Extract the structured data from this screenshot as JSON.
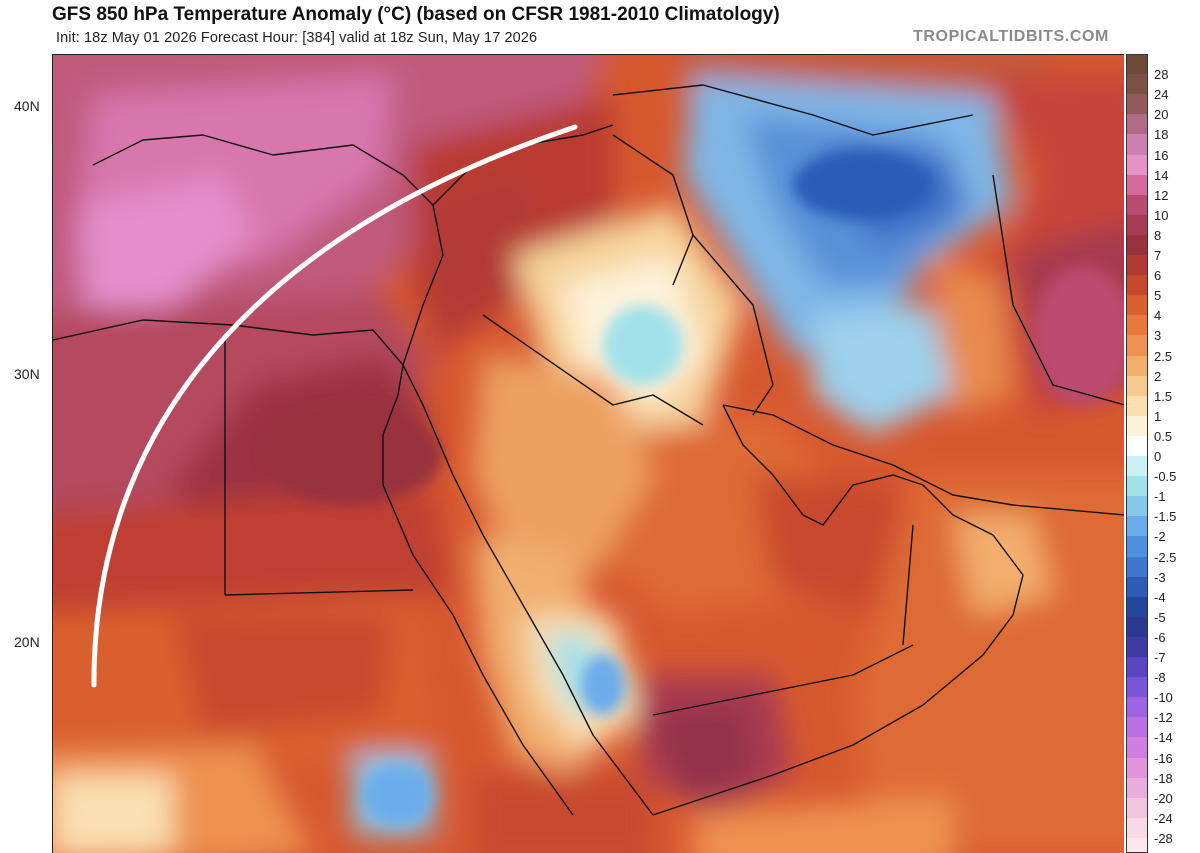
{
  "header": {
    "title": "GFS 850 hPa Temperature Anomaly (°C) (based on CFSR 1981-2010 Climatology)",
    "subtitle": "Init: 18z May 01 2026   Forecast Hour: [384]   valid at 18z Sun, May 17 2026",
    "brand": "TROPICALTIDBITS.COM"
  },
  "map": {
    "lat_labels": [
      "40N",
      "30N",
      "20N"
    ],
    "annotation_color": "#ffffff"
  },
  "colorbar": {
    "levels": [
      {
        "label": "28",
        "color": "#6b4a3a"
      },
      {
        "label": "24",
        "color": "#7d5246"
      },
      {
        "label": "20",
        "color": "#935a5c"
      },
      {
        "label": "18",
        "color": "#b06a86"
      },
      {
        "label": "16",
        "color": "#cc7fae"
      },
      {
        "label": "14",
        "color": "#e592c8"
      },
      {
        "label": "12",
        "color": "#d46a9a"
      },
      {
        "label": "10",
        "color": "#bb4b70"
      },
      {
        "label": "8",
        "color": "#a83b52"
      },
      {
        "label": "7",
        "color": "#98323e"
      },
      {
        "label": "6",
        "color": "#b23a34"
      },
      {
        "label": "5",
        "color": "#c8482d"
      },
      {
        "label": "4",
        "color": "#d9612f"
      },
      {
        "label": "3",
        "color": "#e7793a"
      },
      {
        "label": "2.5",
        "color": "#ee9150"
      },
      {
        "label": "2",
        "color": "#f3ad6c"
      },
      {
        "label": "1.5",
        "color": "#f7c98e"
      },
      {
        "label": "1",
        "color": "#fadfb0"
      },
      {
        "label": "0.5",
        "color": "#fdf1d8"
      },
      {
        "label": "0",
        "color": "#ffffff"
      },
      {
        "label": "-0.5",
        "color": "#c9f0f2"
      },
      {
        "label": "-1",
        "color": "#a2e1ea"
      },
      {
        "label": "-1.5",
        "color": "#86c8ea"
      },
      {
        "label": "-2",
        "color": "#6aacea"
      },
      {
        "label": "-2.5",
        "color": "#4f8fdf"
      },
      {
        "label": "-3",
        "color": "#3d75cf"
      },
      {
        "label": "-4",
        "color": "#2c5bb8"
      },
      {
        "label": "-5",
        "color": "#23479c"
      },
      {
        "label": "-6",
        "color": "#2a3a90"
      },
      {
        "label": "-7",
        "color": "#3f3ba6"
      },
      {
        "label": "-8",
        "color": "#5a45c0"
      },
      {
        "label": "-10",
        "color": "#7a55d6"
      },
      {
        "label": "-12",
        "color": "#9c63e2"
      },
      {
        "label": "-14",
        "color": "#bb6fe6"
      },
      {
        "label": "-16",
        "color": "#d07ee2"
      },
      {
        "label": "-18",
        "color": "#df94dc"
      },
      {
        "label": "-20",
        "color": "#e9acdc"
      },
      {
        "label": "-24",
        "color": "#f1c4e0"
      },
      {
        "label": "-28",
        "color": "#f6d8e6"
      },
      {
        "label": "",
        "color": "#fae8ee"
      }
    ]
  }
}
